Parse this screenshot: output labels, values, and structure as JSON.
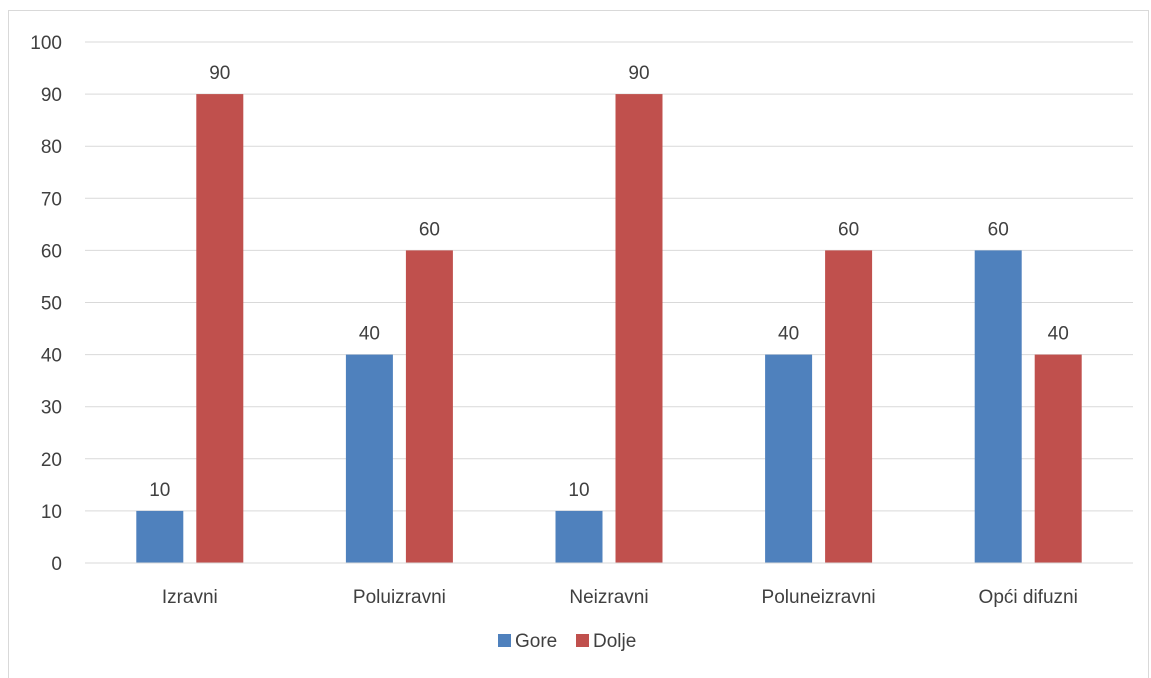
{
  "chart_data": {
    "type": "bar",
    "title": "",
    "xlabel": "",
    "ylabel": "",
    "categories": [
      "Izravni",
      "Poluizravni",
      "Neizravni",
      "Poluneizravni",
      "Opći difuzni"
    ],
    "series": [
      {
        "name": "Gore",
        "values": [
          10,
          40,
          10,
          40,
          60
        ],
        "color": "#4f81bd"
      },
      {
        "name": "Dolje",
        "values": [
          90,
          60,
          90,
          60,
          40
        ],
        "color": "#c0504d"
      }
    ],
    "ylim": [
      0,
      100
    ],
    "yticks": [
      0,
      10,
      20,
      30,
      40,
      50,
      60,
      70,
      80,
      90,
      100
    ],
    "grid": true,
    "gridline_color": "#d9d9d9",
    "legend_position": "bottom",
    "data_labels": true
  }
}
